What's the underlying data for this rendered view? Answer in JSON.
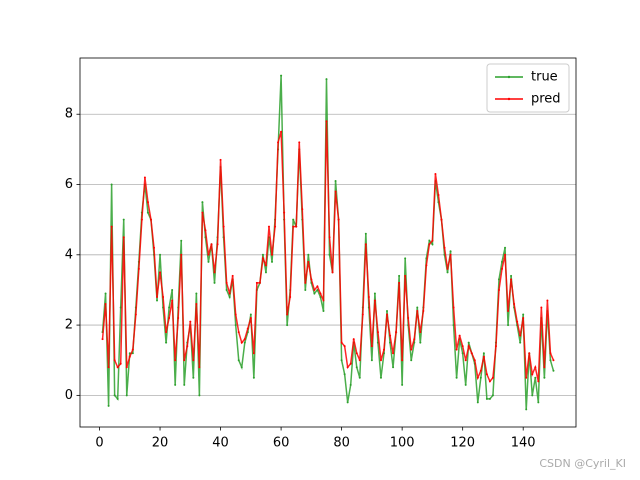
{
  "chart_data": {
    "type": "line",
    "x": [
      1,
      2,
      3,
      4,
      5,
      6,
      7,
      8,
      9,
      10,
      11,
      12,
      13,
      14,
      15,
      16,
      17,
      18,
      19,
      20,
      21,
      22,
      23,
      24,
      25,
      26,
      27,
      28,
      29,
      30,
      31,
      32,
      33,
      34,
      35,
      36,
      37,
      38,
      39,
      40,
      41,
      42,
      43,
      44,
      45,
      46,
      47,
      48,
      49,
      50,
      51,
      52,
      53,
      54,
      55,
      56,
      57,
      58,
      59,
      60,
      61,
      62,
      63,
      64,
      65,
      66,
      67,
      68,
      69,
      70,
      71,
      72,
      73,
      74,
      75,
      76,
      77,
      78,
      79,
      80,
      81,
      82,
      83,
      84,
      85,
      86,
      87,
      88,
      89,
      90,
      91,
      92,
      93,
      94,
      95,
      96,
      97,
      98,
      99,
      100,
      101,
      102,
      103,
      104,
      105,
      106,
      107,
      108,
      109,
      110,
      111,
      112,
      113,
      114,
      115,
      116,
      117,
      118,
      119,
      120,
      121,
      122,
      123,
      124,
      125,
      126,
      127,
      128,
      129,
      130,
      131,
      132,
      133,
      134,
      135,
      136,
      137,
      138,
      139,
      140,
      141,
      142,
      143,
      144,
      145,
      146,
      147,
      148,
      149,
      150
    ],
    "series": [
      {
        "name": "true",
        "color": "#2ca02c",
        "values": [
          1.8,
          2.9,
          -0.3,
          6.0,
          0.0,
          -0.1,
          2.5,
          5.0,
          0.0,
          1.2,
          1.2,
          2.5,
          3.8,
          5.2,
          6.0,
          5.2,
          5.0,
          4.0,
          2.7,
          4.0,
          2.5,
          1.5,
          2.5,
          3.0,
          0.3,
          2.5,
          4.4,
          0.3,
          1.5,
          2.0,
          0.5,
          2.9,
          0.0,
          5.5,
          4.5,
          3.8,
          4.3,
          3.2,
          4.5,
          6.5,
          4.5,
          3.0,
          2.8,
          3.3,
          2.0,
          1.0,
          0.8,
          1.5,
          1.8,
          2.3,
          0.5,
          3.0,
          3.2,
          4.0,
          3.5,
          4.5,
          3.8,
          5.0,
          7.0,
          9.1,
          5.0,
          2.0,
          3.0,
          5.0,
          4.8,
          7.0,
          5.0,
          3.0,
          4.0,
          3.2,
          2.9,
          3.0,
          2.8,
          2.4,
          9.0,
          4.0,
          3.5,
          6.1,
          5.0,
          1.0,
          0.6,
          -0.2,
          0.3,
          1.5,
          0.8,
          0.5,
          2.5,
          4.6,
          2.5,
          1.0,
          2.9,
          1.5,
          0.5,
          1.2,
          2.4,
          1.5,
          0.8,
          1.8,
          3.4,
          0.3,
          3.9,
          2.0,
          1.0,
          1.5,
          2.5,
          1.5,
          2.5,
          3.9,
          4.4,
          4.3,
          6.1,
          5.5,
          5.0,
          4.0,
          3.5,
          4.1,
          2.0,
          0.5,
          1.6,
          1.2,
          0.3,
          1.5,
          1.2,
          0.9,
          -0.2,
          0.5,
          1.2,
          -0.1,
          -0.1,
          0.0,
          1.5,
          3.3,
          3.8,
          4.2,
          2.0,
          3.4,
          2.5,
          2.0,
          1.5,
          2.3,
          -0.4,
          1.2,
          0.0,
          0.5,
          -0.2,
          2.2,
          0.5,
          2.4,
          1.0,
          0.7
        ]
      },
      {
        "name": "pred",
        "color": "#ff0000",
        "values": [
          1.6,
          2.6,
          0.8,
          4.8,
          1.0,
          0.8,
          0.9,
          4.5,
          0.8,
          1.1,
          1.3,
          2.3,
          3.6,
          5.0,
          6.2,
          5.5,
          5.0,
          4.2,
          2.8,
          3.5,
          2.8,
          1.8,
          2.2,
          2.7,
          1.0,
          2.2,
          4.0,
          1.0,
          1.4,
          2.1,
          1.0,
          2.6,
          0.8,
          5.2,
          4.7,
          4.0,
          4.3,
          3.5,
          4.3,
          6.7,
          4.8,
          3.2,
          2.9,
          3.4,
          2.3,
          1.8,
          1.5,
          1.6,
          1.9,
          2.2,
          1.2,
          3.2,
          3.2,
          3.9,
          3.7,
          4.8,
          4.0,
          4.8,
          7.2,
          7.5,
          5.2,
          2.3,
          2.8,
          4.8,
          4.8,
          7.2,
          5.3,
          3.2,
          3.8,
          3.3,
          3.0,
          3.1,
          2.9,
          2.7,
          7.8,
          4.5,
          3.5,
          5.8,
          5.0,
          1.5,
          1.4,
          0.8,
          0.9,
          1.6,
          1.2,
          1.0,
          2.3,
          4.3,
          2.8,
          1.4,
          2.7,
          1.8,
          1.0,
          1.3,
          2.3,
          1.7,
          1.2,
          1.8,
          3.2,
          1.0,
          3.4,
          2.2,
          1.3,
          1.6,
          2.4,
          1.8,
          2.4,
          3.7,
          4.3,
          4.4,
          6.3,
          5.7,
          5.0,
          4.2,
          3.6,
          4.0,
          2.5,
          1.3,
          1.7,
          1.4,
          1.0,
          1.4,
          1.2,
          1.0,
          0.5,
          0.7,
          1.1,
          0.6,
          0.4,
          0.5,
          1.4,
          3.0,
          3.6,
          4.0,
          2.4,
          3.3,
          2.6,
          2.1,
          1.7,
          2.2,
          0.5,
          1.2,
          0.6,
          0.8,
          0.4,
          2.5,
          0.8,
          2.7,
          1.2,
          1.0
        ]
      }
    ],
    "xlim": [
      -6.45,
      157.45
    ],
    "ylim": [
      -0.9,
      9.6
    ],
    "xticks": [
      0,
      20,
      40,
      60,
      80,
      100,
      120,
      140
    ],
    "yticks": [
      0,
      2,
      4,
      6,
      8
    ],
    "grid": "y",
    "legend": "upper right",
    "watermark": "CSDN @Cyril_KI"
  }
}
